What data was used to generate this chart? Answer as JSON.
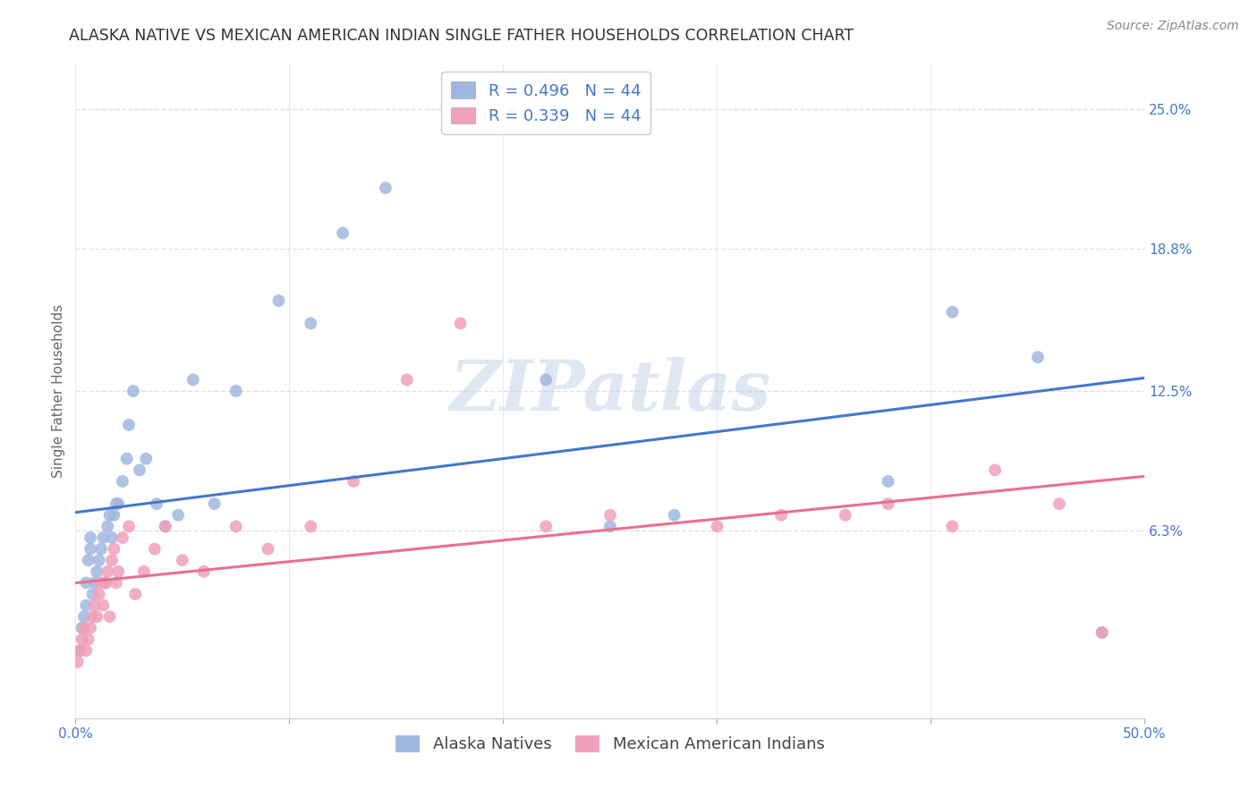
{
  "title": "ALASKA NATIVE VS MEXICAN AMERICAN INDIAN SINGLE FATHER HOUSEHOLDS CORRELATION CHART",
  "source": "Source: ZipAtlas.com",
  "ylabel": "Single Father Households",
  "xlim": [
    0.0,
    0.5
  ],
  "ylim": [
    -0.02,
    0.27
  ],
  "ytick_labels": [
    "6.3%",
    "12.5%",
    "18.8%",
    "25.0%"
  ],
  "ytick_positions": [
    0.063,
    0.125,
    0.188,
    0.25
  ],
  "background_color": "#ffffff",
  "grid_color": "#d8d8e8",
  "watermark_text": "ZIPatlas",
  "legend_blue_label": "R = 0.496   N = 44",
  "legend_pink_label": "R = 0.339   N = 44",
  "blue_color": "#a0b8e0",
  "pink_color": "#f0a0b8",
  "line_blue": "#4477cc",
  "line_pink": "#e87090",
  "legend_bottom_blue": "Alaska Natives",
  "legend_bottom_pink": "Mexican American Indians",
  "alaska_x": [
    0.002,
    0.003,
    0.004,
    0.005,
    0.005,
    0.006,
    0.007,
    0.007,
    0.008,
    0.009,
    0.01,
    0.011,
    0.012,
    0.013,
    0.014,
    0.015,
    0.016,
    0.017,
    0.018,
    0.019,
    0.02,
    0.022,
    0.024,
    0.025,
    0.027,
    0.03,
    0.033,
    0.038,
    0.042,
    0.048,
    0.055,
    0.065,
    0.075,
    0.095,
    0.11,
    0.125,
    0.145,
    0.22,
    0.25,
    0.28,
    0.38,
    0.41,
    0.45,
    0.48
  ],
  "alaska_y": [
    0.01,
    0.02,
    0.025,
    0.03,
    0.04,
    0.05,
    0.055,
    0.06,
    0.035,
    0.04,
    0.045,
    0.05,
    0.055,
    0.06,
    0.04,
    0.065,
    0.07,
    0.06,
    0.07,
    0.075,
    0.075,
    0.085,
    0.095,
    0.11,
    0.125,
    0.09,
    0.095,
    0.075,
    0.065,
    0.07,
    0.13,
    0.075,
    0.125,
    0.165,
    0.155,
    0.195,
    0.215,
    0.13,
    0.065,
    0.07,
    0.085,
    0.16,
    0.14,
    0.018
  ],
  "mexican_x": [
    0.001,
    0.002,
    0.003,
    0.004,
    0.005,
    0.006,
    0.007,
    0.008,
    0.009,
    0.01,
    0.011,
    0.012,
    0.013,
    0.014,
    0.015,
    0.016,
    0.017,
    0.018,
    0.019,
    0.02,
    0.022,
    0.025,
    0.028,
    0.032,
    0.037,
    0.042,
    0.05,
    0.06,
    0.075,
    0.09,
    0.11,
    0.13,
    0.155,
    0.18,
    0.22,
    0.25,
    0.3,
    0.33,
    0.36,
    0.38,
    0.41,
    0.43,
    0.46,
    0.48
  ],
  "mexican_y": [
    0.005,
    0.01,
    0.015,
    0.02,
    0.01,
    0.015,
    0.02,
    0.025,
    0.03,
    0.025,
    0.035,
    0.04,
    0.03,
    0.04,
    0.045,
    0.025,
    0.05,
    0.055,
    0.04,
    0.045,
    0.06,
    0.065,
    0.035,
    0.045,
    0.055,
    0.065,
    0.05,
    0.045,
    0.065,
    0.055,
    0.065,
    0.085,
    0.13,
    0.155,
    0.065,
    0.07,
    0.065,
    0.07,
    0.07,
    0.075,
    0.065,
    0.09,
    0.075,
    0.018
  ],
  "title_fontsize": 12.5,
  "source_fontsize": 10,
  "axis_label_fontsize": 11,
  "tick_fontsize": 11,
  "legend_fontsize": 13,
  "label_color": "#4477cc"
}
